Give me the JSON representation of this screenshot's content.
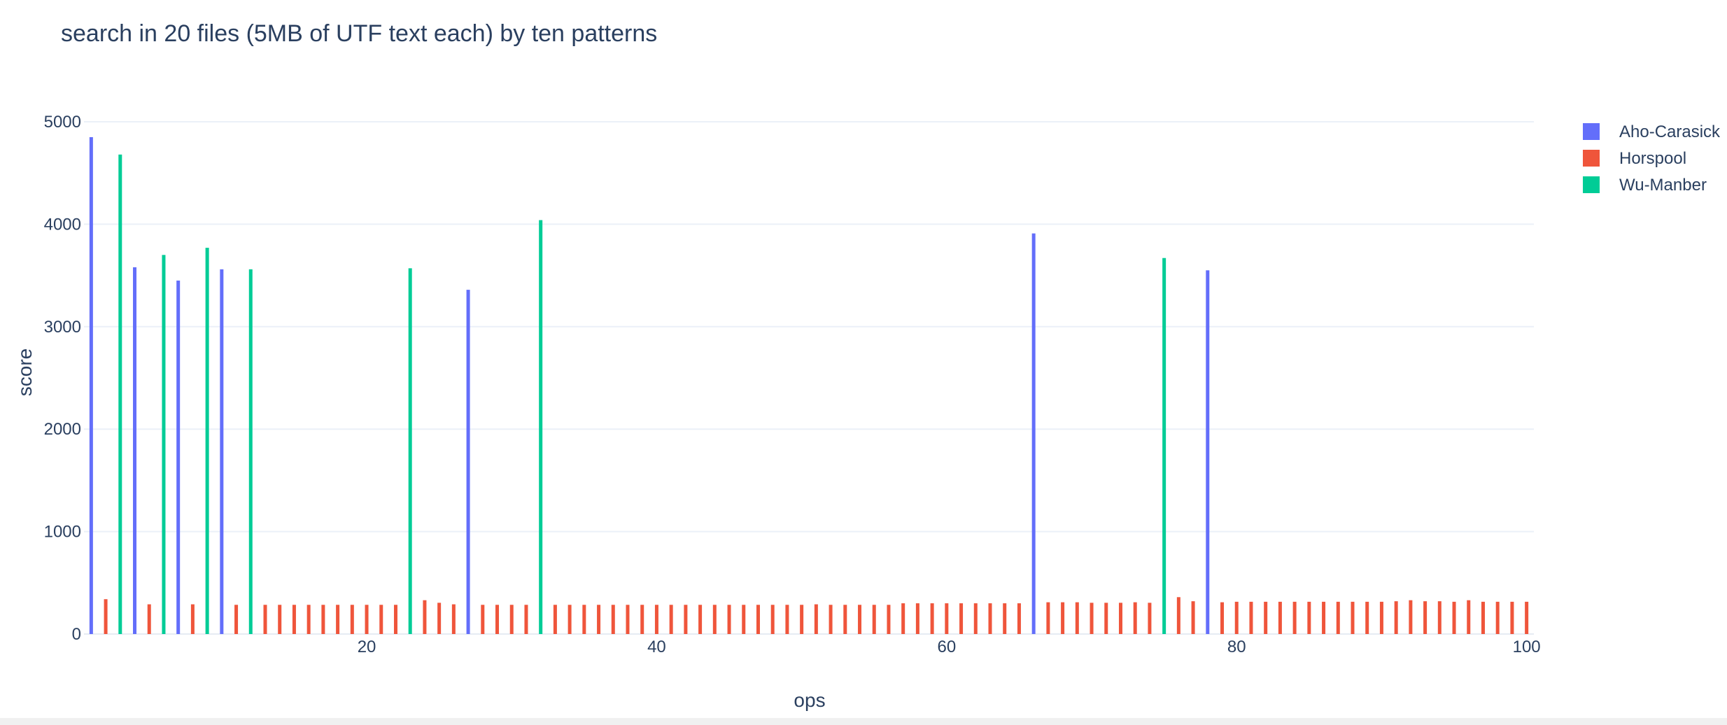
{
  "chart_data": {
    "type": "bar",
    "title": "search in 20 files (5MB of UTF text each) by ten patterns",
    "xlabel": "ops",
    "ylabel": "score",
    "xlim": [
      0.5,
      100.5
    ],
    "ylim": [
      0,
      5000
    ],
    "x_ticks": [
      20,
      40,
      60,
      80,
      100
    ],
    "y_ticks": [
      0,
      1000,
      2000,
      3000,
      4000,
      5000
    ],
    "grid": true,
    "legend_position": "top-right",
    "series": [
      {
        "name": "Aho-Carasick",
        "color": "#636efa",
        "points": [
          {
            "x": 1,
            "y": 4850
          },
          {
            "x": 4,
            "y": 3580
          },
          {
            "x": 7,
            "y": 3450
          },
          {
            "x": 10,
            "y": 3560
          },
          {
            "x": 27,
            "y": 3360
          },
          {
            "x": 66,
            "y": 3910
          },
          {
            "x": 78,
            "y": 3550
          }
        ]
      },
      {
        "name": "Horspool",
        "color": "#ef553b",
        "points": [
          {
            "x": 2,
            "y": 340
          },
          {
            "x": 5,
            "y": 290
          },
          {
            "x": 8,
            "y": 290
          },
          {
            "x": 11,
            "y": 285
          },
          {
            "x": 13,
            "y": 285
          },
          {
            "x": 14,
            "y": 285
          },
          {
            "x": 15,
            "y": 285
          },
          {
            "x": 16,
            "y": 285
          },
          {
            "x": 17,
            "y": 285
          },
          {
            "x": 18,
            "y": 285
          },
          {
            "x": 19,
            "y": 285
          },
          {
            "x": 20,
            "y": 285
          },
          {
            "x": 21,
            "y": 285
          },
          {
            "x": 22,
            "y": 285
          },
          {
            "x": 24,
            "y": 330
          },
          {
            "x": 25,
            "y": 305
          },
          {
            "x": 26,
            "y": 290
          },
          {
            "x": 28,
            "y": 285
          },
          {
            "x": 29,
            "y": 285
          },
          {
            "x": 30,
            "y": 285
          },
          {
            "x": 31,
            "y": 285
          },
          {
            "x": 33,
            "y": 285
          },
          {
            "x": 34,
            "y": 285
          },
          {
            "x": 35,
            "y": 285
          },
          {
            "x": 36,
            "y": 285
          },
          {
            "x": 37,
            "y": 285
          },
          {
            "x": 38,
            "y": 285
          },
          {
            "x": 39,
            "y": 285
          },
          {
            "x": 40,
            "y": 285
          },
          {
            "x": 41,
            "y": 285
          },
          {
            "x": 42,
            "y": 285
          },
          {
            "x": 43,
            "y": 285
          },
          {
            "x": 44,
            "y": 285
          },
          {
            "x": 45,
            "y": 285
          },
          {
            "x": 46,
            "y": 285
          },
          {
            "x": 47,
            "y": 285
          },
          {
            "x": 48,
            "y": 285
          },
          {
            "x": 49,
            "y": 285
          },
          {
            "x": 50,
            "y": 285
          },
          {
            "x": 51,
            "y": 290
          },
          {
            "x": 52,
            "y": 285
          },
          {
            "x": 53,
            "y": 285
          },
          {
            "x": 54,
            "y": 285
          },
          {
            "x": 55,
            "y": 285
          },
          {
            "x": 56,
            "y": 285
          },
          {
            "x": 57,
            "y": 300
          },
          {
            "x": 58,
            "y": 300
          },
          {
            "x": 59,
            "y": 300
          },
          {
            "x": 60,
            "y": 300
          },
          {
            "x": 61,
            "y": 300
          },
          {
            "x": 62,
            "y": 300
          },
          {
            "x": 63,
            "y": 300
          },
          {
            "x": 64,
            "y": 300
          },
          {
            "x": 65,
            "y": 300
          },
          {
            "x": 67,
            "y": 310
          },
          {
            "x": 68,
            "y": 310
          },
          {
            "x": 69,
            "y": 310
          },
          {
            "x": 70,
            "y": 305
          },
          {
            "x": 71,
            "y": 305
          },
          {
            "x": 72,
            "y": 305
          },
          {
            "x": 73,
            "y": 310
          },
          {
            "x": 74,
            "y": 305
          },
          {
            "x": 76,
            "y": 360
          },
          {
            "x": 77,
            "y": 320
          },
          {
            "x": 79,
            "y": 310
          },
          {
            "x": 80,
            "y": 315
          },
          {
            "x": 81,
            "y": 315
          },
          {
            "x": 82,
            "y": 315
          },
          {
            "x": 83,
            "y": 315
          },
          {
            "x": 84,
            "y": 315
          },
          {
            "x": 85,
            "y": 315
          },
          {
            "x": 86,
            "y": 315
          },
          {
            "x": 87,
            "y": 315
          },
          {
            "x": 88,
            "y": 315
          },
          {
            "x": 89,
            "y": 315
          },
          {
            "x": 90,
            "y": 315
          },
          {
            "x": 91,
            "y": 320
          },
          {
            "x": 92,
            "y": 330
          },
          {
            "x": 93,
            "y": 320
          },
          {
            "x": 94,
            "y": 320
          },
          {
            "x": 95,
            "y": 315
          },
          {
            "x": 96,
            "y": 330
          },
          {
            "x": 97,
            "y": 315
          },
          {
            "x": 98,
            "y": 315
          },
          {
            "x": 99,
            "y": 315
          },
          {
            "x": 100,
            "y": 315
          }
        ]
      },
      {
        "name": "Wu-Manber",
        "color": "#00cc96",
        "points": [
          {
            "x": 3,
            "y": 4680
          },
          {
            "x": 6,
            "y": 3700
          },
          {
            "x": 9,
            "y": 3770
          },
          {
            "x": 12,
            "y": 3560
          },
          {
            "x": 23,
            "y": 3570
          },
          {
            "x": 32,
            "y": 4040
          },
          {
            "x": 75,
            "y": 3670
          }
        ]
      }
    ]
  }
}
